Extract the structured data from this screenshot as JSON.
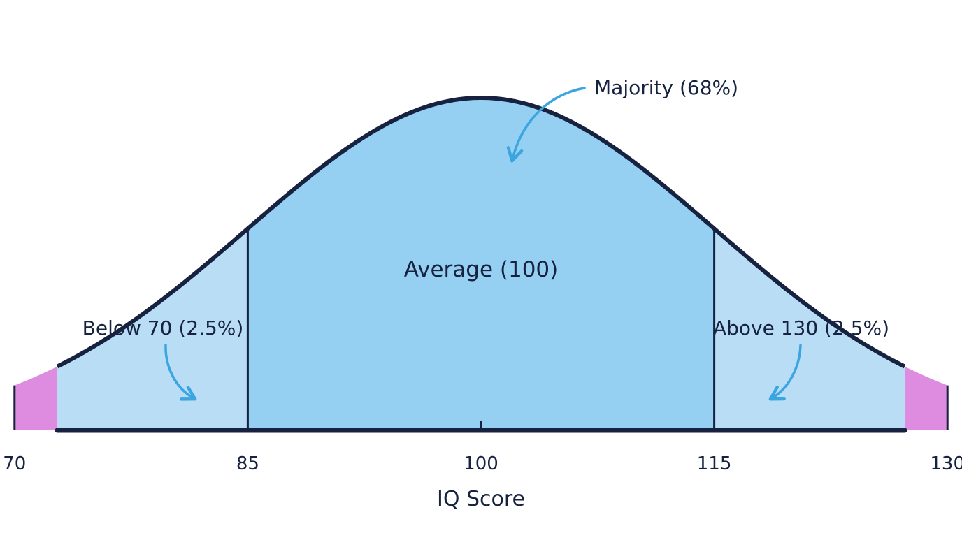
{
  "chart_data": {
    "type": "area",
    "distribution": "normal",
    "mean": 100,
    "sd": 15,
    "xlim": [
      40,
      160
    ],
    "xlabel": "IQ Score",
    "ticks": [
      {
        "value": 70,
        "label": "70"
      },
      {
        "value": 85,
        "label": "85"
      },
      {
        "value": 100,
        "label": "100"
      },
      {
        "value": 115,
        "label": "115"
      },
      {
        "value": 130,
        "label": "130"
      }
    ],
    "regions": [
      {
        "from": 40,
        "to": 70,
        "color": "#de8ce0",
        "label": "Below 70 (2.5%)"
      },
      {
        "from": 70,
        "to": 85,
        "color": "#b8ddf5"
      },
      {
        "from": 85,
        "to": 115,
        "color": "#95cff2",
        "label": "Majority (68%)"
      },
      {
        "from": 115,
        "to": 130,
        "color": "#b8ddf5"
      },
      {
        "from": 130,
        "to": 160,
        "color": "#de8ce0",
        "label": "Above 130 (2.5%)"
      }
    ],
    "center_label": "Average (100)",
    "annotations": {
      "majority": "Majority (68%)",
      "below": "Below 70 (2.5%)",
      "above": "Above 130 (2.5%)"
    },
    "colors": {
      "outline": "#16223f",
      "arrow": "#3ba5e0",
      "tail": "#de8ce0",
      "inner": "#b8ddf5",
      "core": "#95cff2"
    },
    "grid": false,
    "legend": "none"
  }
}
